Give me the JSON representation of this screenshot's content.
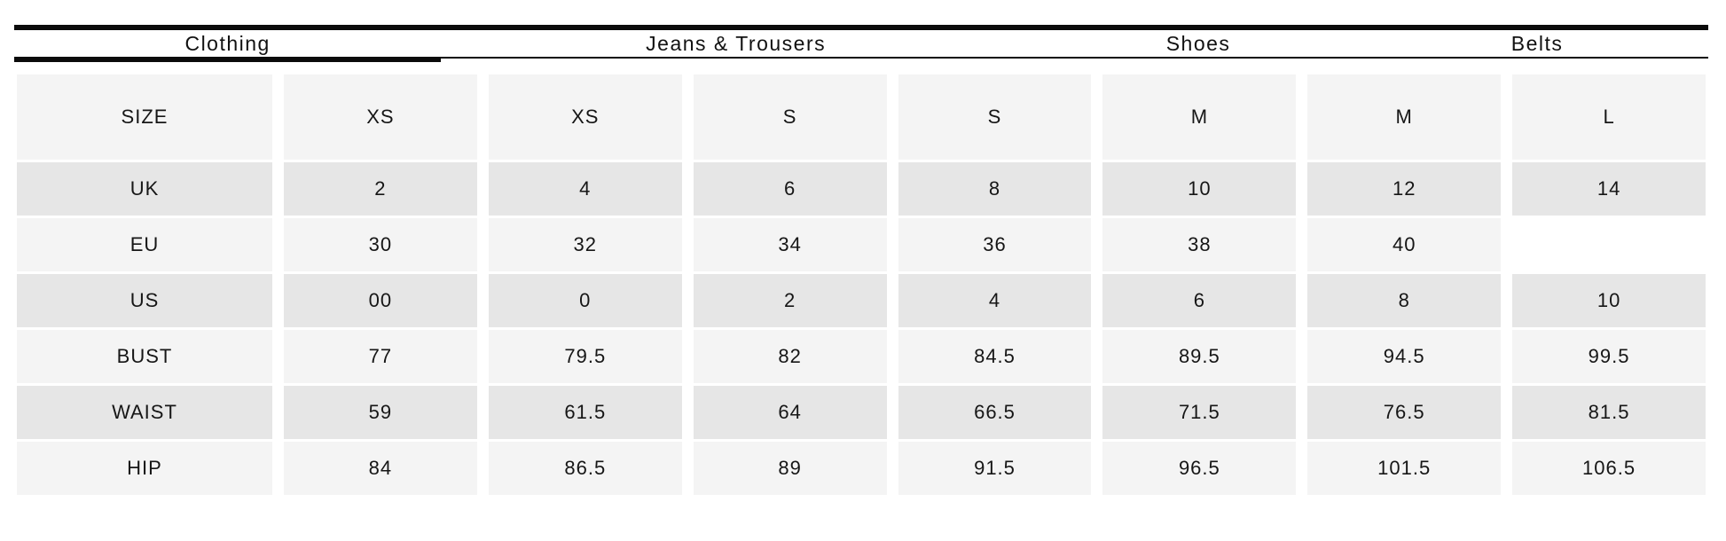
{
  "tabs": [
    {
      "label": "Clothing",
      "active": true
    },
    {
      "label": "Jeans & Trousers",
      "active": false
    },
    {
      "label": "Shoes",
      "active": false
    },
    {
      "label": "Belts",
      "active": false
    }
  ],
  "size_chart": {
    "rows": [
      {
        "label": "SIZE",
        "values": [
          "XS",
          "XS",
          "S",
          "S",
          "M",
          "M",
          "L"
        ]
      },
      {
        "label": "UK",
        "values": [
          "2",
          "4",
          "6",
          "8",
          "10",
          "12",
          "14"
        ]
      },
      {
        "label": "EU",
        "values": [
          "30",
          "32",
          "34",
          "36",
          "38",
          "40",
          ""
        ]
      },
      {
        "label": "US",
        "values": [
          "00",
          "0",
          "2",
          "4",
          "6",
          "8",
          "10"
        ]
      },
      {
        "label": "BUST",
        "values": [
          "77",
          "79.5",
          "82",
          "84.5",
          "89.5",
          "94.5",
          "99.5"
        ]
      },
      {
        "label": "WAIST",
        "values": [
          "59",
          "61.5",
          "64",
          "66.5",
          "71.5",
          "76.5",
          "81.5"
        ]
      },
      {
        "label": "HIP",
        "values": [
          "84",
          "86.5",
          "89",
          "91.5",
          "96.5",
          "101.5",
          "106.5"
        ]
      }
    ]
  },
  "colors": {
    "rule_black": "#0b0b0b",
    "row_light": "#f4f4f4",
    "row_dark": "#e6e6e6",
    "text": "#141414"
  }
}
